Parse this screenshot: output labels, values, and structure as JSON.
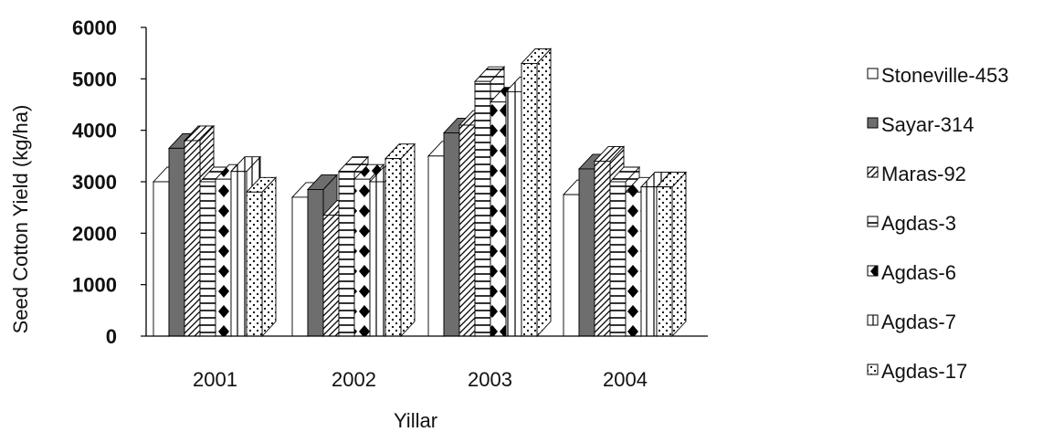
{
  "chart_data": {
    "type": "bar",
    "title": "",
    "xlabel": "Yillar",
    "ylabel": "Seed Cotton Yield  (kg/ha)",
    "categories": [
      "2001",
      "2002",
      "2003",
      "2004"
    ],
    "ylim": [
      0,
      6000
    ],
    "yticks": [
      "0",
      "1000",
      "2000",
      "3000",
      "4000",
      "5000",
      "6000"
    ],
    "grid": false,
    "legend_position": "right",
    "series": [
      {
        "name": "Stoneville-453",
        "values": [
          3000,
          2700,
          3500,
          2750
        ]
      },
      {
        "name": "Sayar-314",
        "values": [
          3650,
          2850,
          3950,
          3250
        ]
      },
      {
        "name": "Maras-92",
        "values": [
          3800,
          2350,
          4100,
          3400
        ]
      },
      {
        "name": "Agdas-3",
        "values": [
          3000,
          3200,
          4950,
          3000
        ]
      },
      {
        "name": "Agdas-6",
        "values": [
          3050,
          3050,
          4550,
          2800
        ]
      },
      {
        "name": "Agdas-7",
        "values": [
          3200,
          3000,
          4750,
          2900
        ]
      },
      {
        "name": "Agdas-17",
        "values": [
          2800,
          3450,
          5300,
          2900
        ]
      }
    ]
  }
}
